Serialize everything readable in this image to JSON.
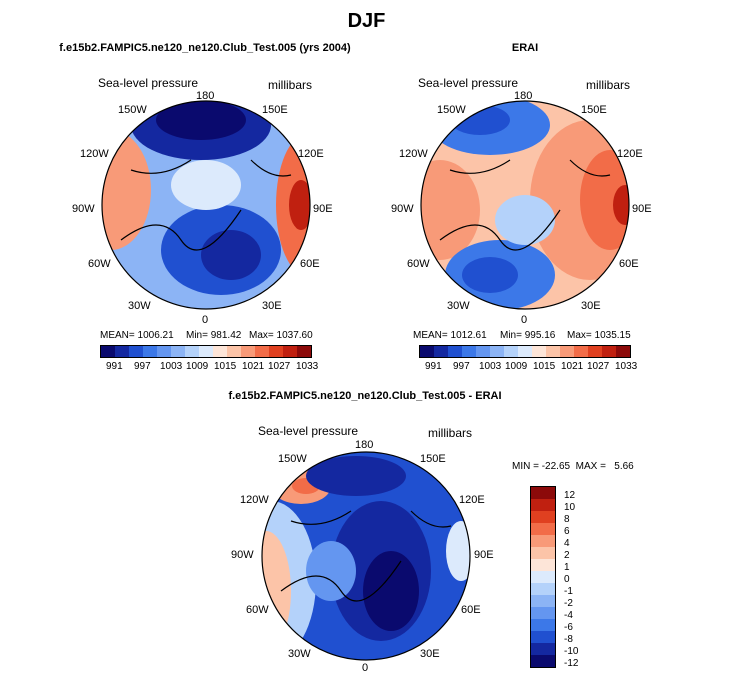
{
  "figure_title": "DJF",
  "panels": [
    {
      "title": "f.e15b2.FAMPIC5.ne120_ne120.Club_Test.005 (yrs 2004)",
      "variable": "Sea-level pressure",
      "units": "millibars",
      "lon_labels": [
        "180",
        "150E",
        "120E",
        "90E",
        "60E",
        "30E",
        "0",
        "30W",
        "60W",
        "90W",
        "120W",
        "150W"
      ],
      "stats": {
        "mean": "MEAN= 1006.21",
        "min": "Min= 981.42",
        "max": "Max= 1037.60"
      },
      "colorbar_ticks": [
        "991",
        "997",
        "1003",
        "1009",
        "1015",
        "1021",
        "1027",
        "1033"
      ]
    },
    {
      "title": "ERAI",
      "variable": "Sea-level pressure",
      "units": "millibars",
      "lon_labels": [
        "180",
        "150E",
        "120E",
        "90E",
        "60E",
        "30E",
        "0",
        "30W",
        "60W",
        "90W",
        "120W",
        "150W"
      ],
      "stats": {
        "mean": "MEAN= 1012.61",
        "min": "Min= 995.16",
        "max": "Max= 1035.15"
      },
      "colorbar_ticks": [
        "991",
        "997",
        "1003",
        "1009",
        "1015",
        "1021",
        "1027",
        "1033"
      ]
    },
    {
      "title": "f.e15b2.FAMPIC5.ne120_ne120.Club_Test.005 - ERAI",
      "variable": "Sea-level pressure",
      "units": "millibars",
      "lon_labels": [
        "180",
        "150E",
        "120E",
        "90E",
        "60E",
        "30E",
        "0",
        "30W",
        "60W",
        "90W",
        "120W",
        "150W"
      ],
      "stats_line": "MIN = -22.65  MAX =   5.66",
      "colorbar_ticks": [
        "12",
        "10",
        "8",
        "6",
        "4",
        "2",
        "1",
        "0",
        "-1",
        "-2",
        "-4",
        "-6",
        "-8",
        "-10",
        "-12"
      ]
    }
  ],
  "colors": {
    "seq": [
      "#0a0a6e",
      "#1428a0",
      "#2050d0",
      "#3c78e8",
      "#6496f0",
      "#8cb4f5",
      "#b4d2fa",
      "#dceafc",
      "#fde5d8",
      "#fcc4a8",
      "#f89a78",
      "#f26c48",
      "#e04020",
      "#c02010",
      "#8c0a0a"
    ],
    "diff": [
      "#8c0a0a",
      "#c02010",
      "#e04020",
      "#f26c48",
      "#f89a78",
      "#fcc4a8",
      "#fde5d8",
      "#dceafc",
      "#b4d2fa",
      "#8cb4f5",
      "#6496f0",
      "#3c78e8",
      "#2050d0",
      "#1428a0",
      "#0a0a6e"
    ]
  }
}
